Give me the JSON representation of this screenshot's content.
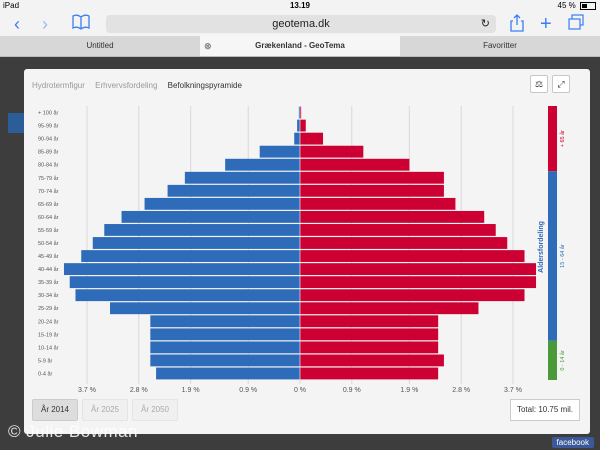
{
  "status": {
    "device": "iPad",
    "time": "13.19",
    "battery": "45 %"
  },
  "browser": {
    "url": "geotema.dk"
  },
  "tabs": [
    {
      "label": "Untitled"
    },
    {
      "label": "Grækenland - GeoTema"
    },
    {
      "label": "Favoritter"
    }
  ],
  "modal": {
    "tabs": [
      "Hydrotermfigur",
      "Erhvervsfordeling",
      "Befolkningspyramide"
    ],
    "active_tab": 2,
    "years": [
      "År 2014",
      "År 2025",
      "År 2050"
    ],
    "active_year": 0,
    "total": "Total: 10.75 mil."
  },
  "colors": {
    "male": "#2e6bb8",
    "female": "#cc0033",
    "green": "#4a9a3a",
    "bracket_red": "#cc0033",
    "bracket_blue": "#2e6bb8"
  },
  "chart_data": {
    "type": "bar",
    "subtype": "population-pyramid",
    "age_groups": [
      "0-4 år",
      "5-9 år",
      "10-14 år",
      "15-19 år",
      "20-24 år",
      "25-29 år",
      "30-34 år",
      "35-39 år",
      "40-44 år",
      "45-49 år",
      "50-54 år",
      "55-59 år",
      "60-64 år",
      "65-69 år",
      "70-74 år",
      "75-79 år",
      "80-84 år",
      "85-89 år",
      "90-94 år",
      "95-99 år",
      "+ 100 år"
    ],
    "male": [
      2.5,
      2.6,
      2.6,
      2.6,
      2.6,
      3.3,
      3.9,
      4.0,
      4.1,
      3.8,
      3.6,
      3.4,
      3.1,
      2.7,
      2.3,
      2.0,
      1.3,
      0.7,
      0.1,
      0.05,
      0.02
    ],
    "female": [
      2.4,
      2.5,
      2.4,
      2.4,
      2.4,
      3.1,
      3.9,
      4.1,
      4.1,
      3.9,
      3.6,
      3.4,
      3.2,
      2.7,
      2.5,
      2.5,
      1.9,
      1.1,
      0.4,
      0.1,
      0.02
    ],
    "xticks": [
      "3.7 %",
      "2.8 %",
      "1.9 %",
      "0.9 %",
      "0 %",
      "0.9 %",
      "1.9 %",
      "2.8 %",
      "3.7 %"
    ],
    "xlim": [
      -4.0,
      4.0
    ],
    "ylabel_right": "Aldersfordeling",
    "brackets": [
      {
        "label": "+ 65 år",
        "color": "red"
      },
      {
        "label": "15 - 64 år",
        "color": "blue"
      },
      {
        "label": "0 - 14 år",
        "color": "green"
      }
    ]
  },
  "watermark": "© Julie Bowman",
  "facebook": "facebook"
}
